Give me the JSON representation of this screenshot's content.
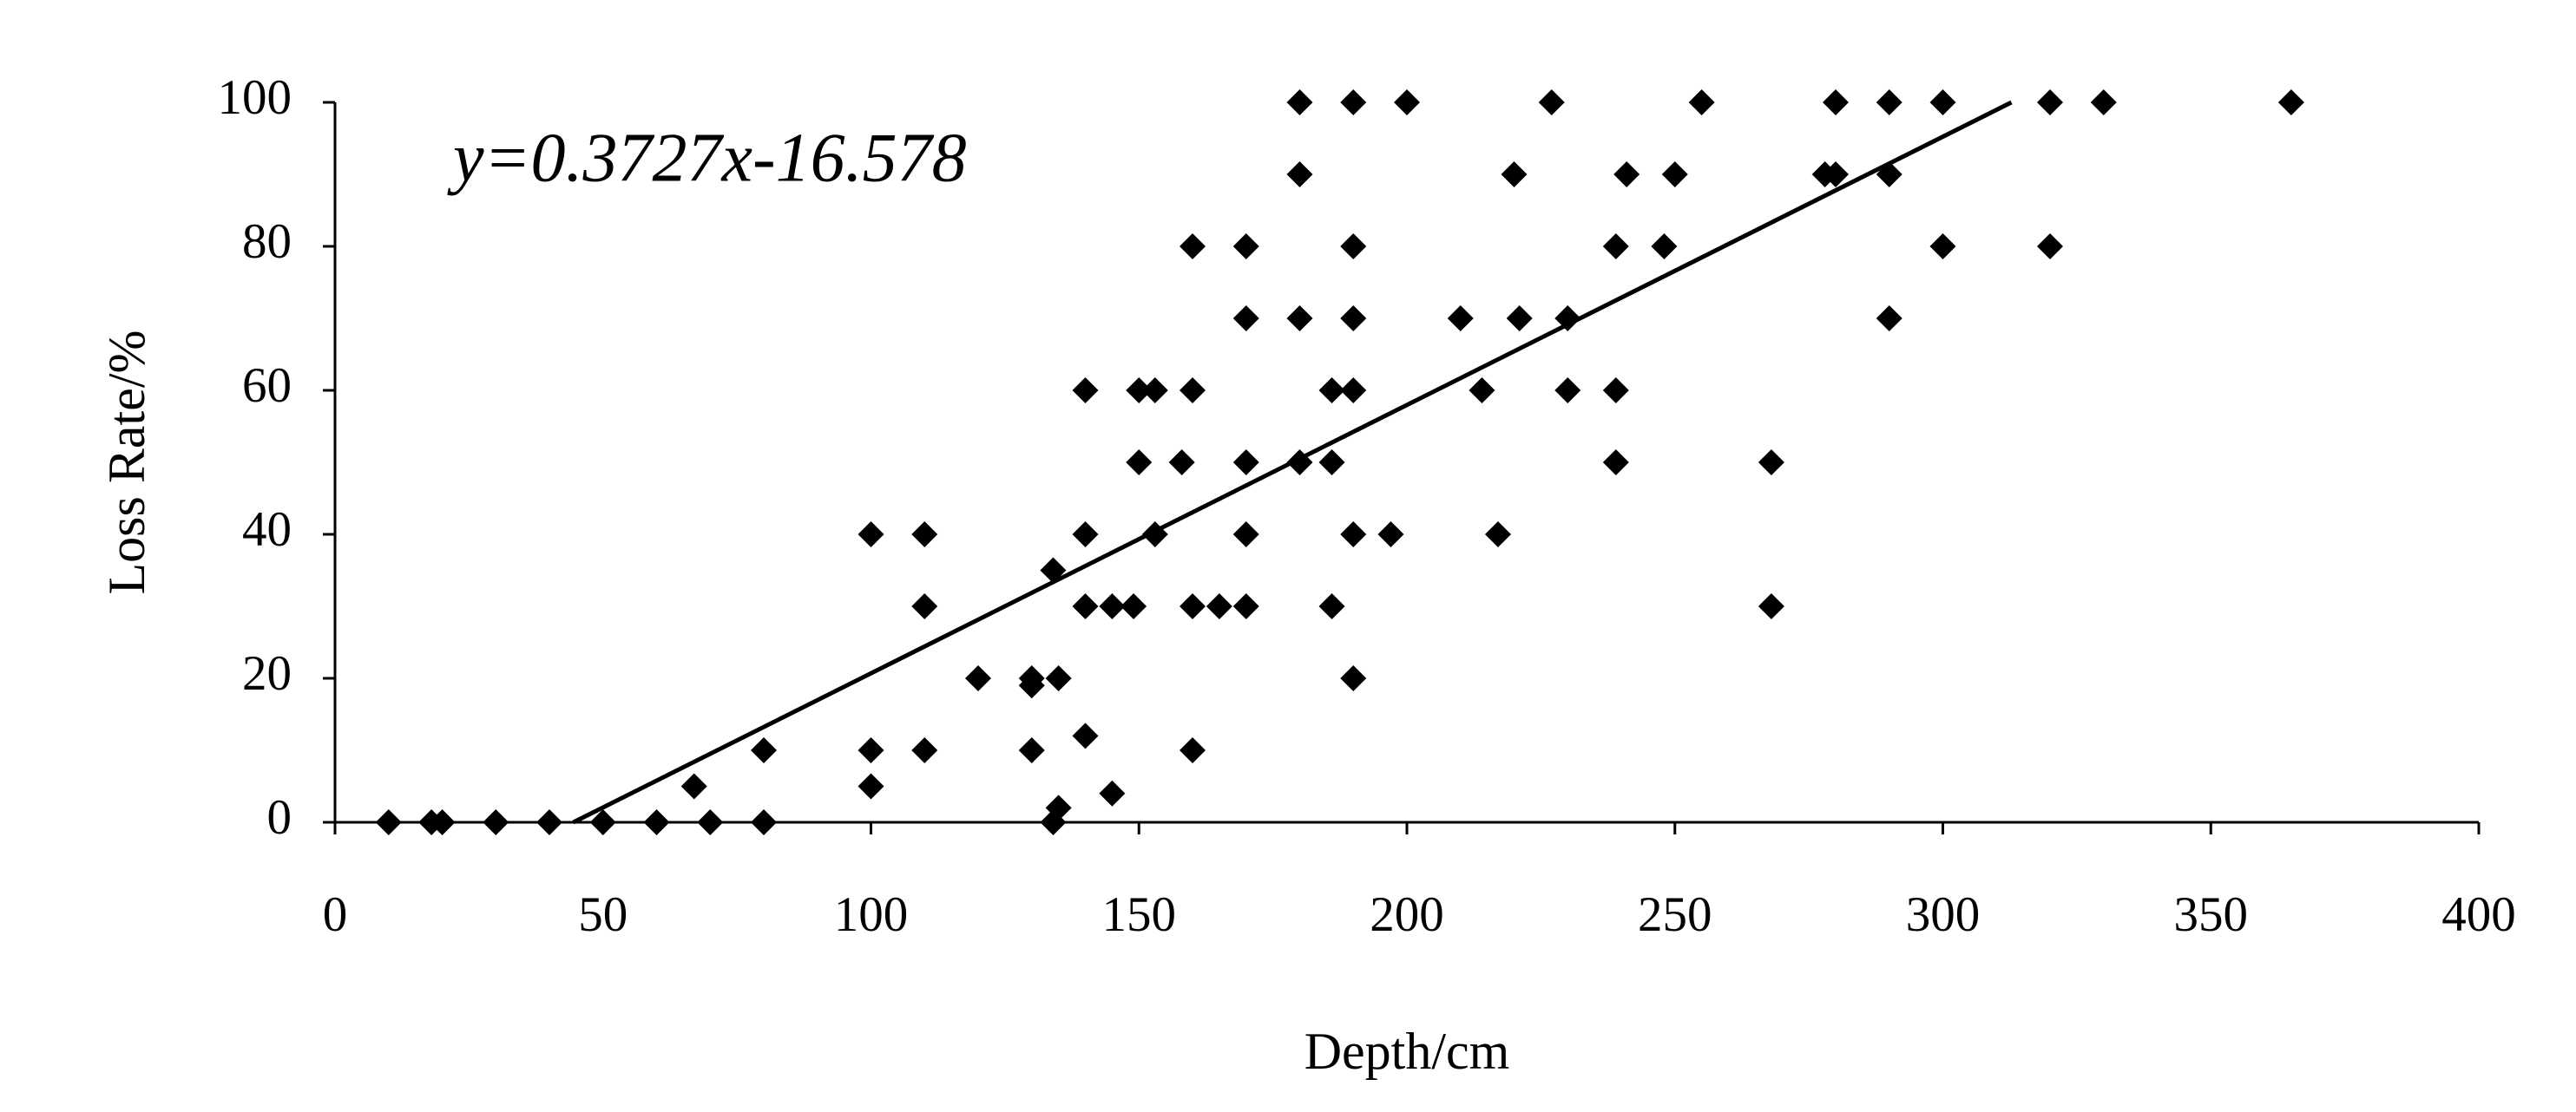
{
  "chart_data": {
    "type": "scatter",
    "xlabel": "Depth/cm",
    "ylabel": "Loss Rate/%",
    "annotation": "y=0.3727x-16.578",
    "trendline": {
      "slope": 0.3727,
      "intercept": -16.578,
      "color": "#000000"
    },
    "color": "#000000",
    "marker": "diamond",
    "x": [
      10,
      18,
      20,
      30,
      40,
      50,
      60,
      67,
      70,
      80,
      80,
      100,
      100,
      100,
      110,
      110,
      110,
      120,
      130,
      130,
      130,
      134,
      135,
      134,
      135,
      140,
      140,
      140,
      140,
      145,
      145,
      149,
      150,
      150,
      153,
      153,
      158,
      160,
      160,
      160,
      160,
      165,
      170,
      170,
      170,
      170,
      170,
      180,
      180,
      180,
      180,
      186,
      186,
      186,
      190,
      190,
      190,
      190,
      190,
      190,
      197,
      200,
      210,
      214,
      217,
      220,
      221,
      227,
      230,
      230,
      239,
      239,
      239,
      241,
      248,
      250,
      255,
      268,
      268,
      278,
      280,
      280,
      290,
      290,
      290,
      300,
      300,
      320,
      320,
      330,
      365
    ],
    "values": [
      0,
      0,
      0,
      0,
      0,
      0,
      0,
      5,
      0,
      0,
      10,
      40,
      10,
      5,
      40,
      30,
      10,
      20,
      20,
      19,
      10,
      0,
      2,
      35,
      20,
      60,
      40,
      30,
      12,
      30,
      4,
      30,
      60,
      50,
      60,
      40,
      50,
      80,
      60,
      30,
      10,
      30,
      80,
      70,
      50,
      40,
      30,
      100,
      90,
      70,
      50,
      60,
      50,
      30,
      100,
      80,
      70,
      60,
      40,
      20,
      40,
      100,
      70,
      60,
      40,
      90,
      70,
      100,
      70,
      60,
      80,
      60,
      50,
      90,
      80,
      90,
      100,
      50,
      30,
      90,
      100,
      90,
      100,
      90,
      70,
      100,
      80,
      100,
      80,
      100,
      100
    ],
    "xlim": [
      0,
      400
    ],
    "xticks": [
      0,
      50,
      100,
      150,
      200,
      250,
      300,
      350,
      400
    ],
    "ylim": [
      0,
      100
    ],
    "yticks": [
      0,
      20,
      40,
      60,
      80,
      100
    ],
    "grid": false
  }
}
